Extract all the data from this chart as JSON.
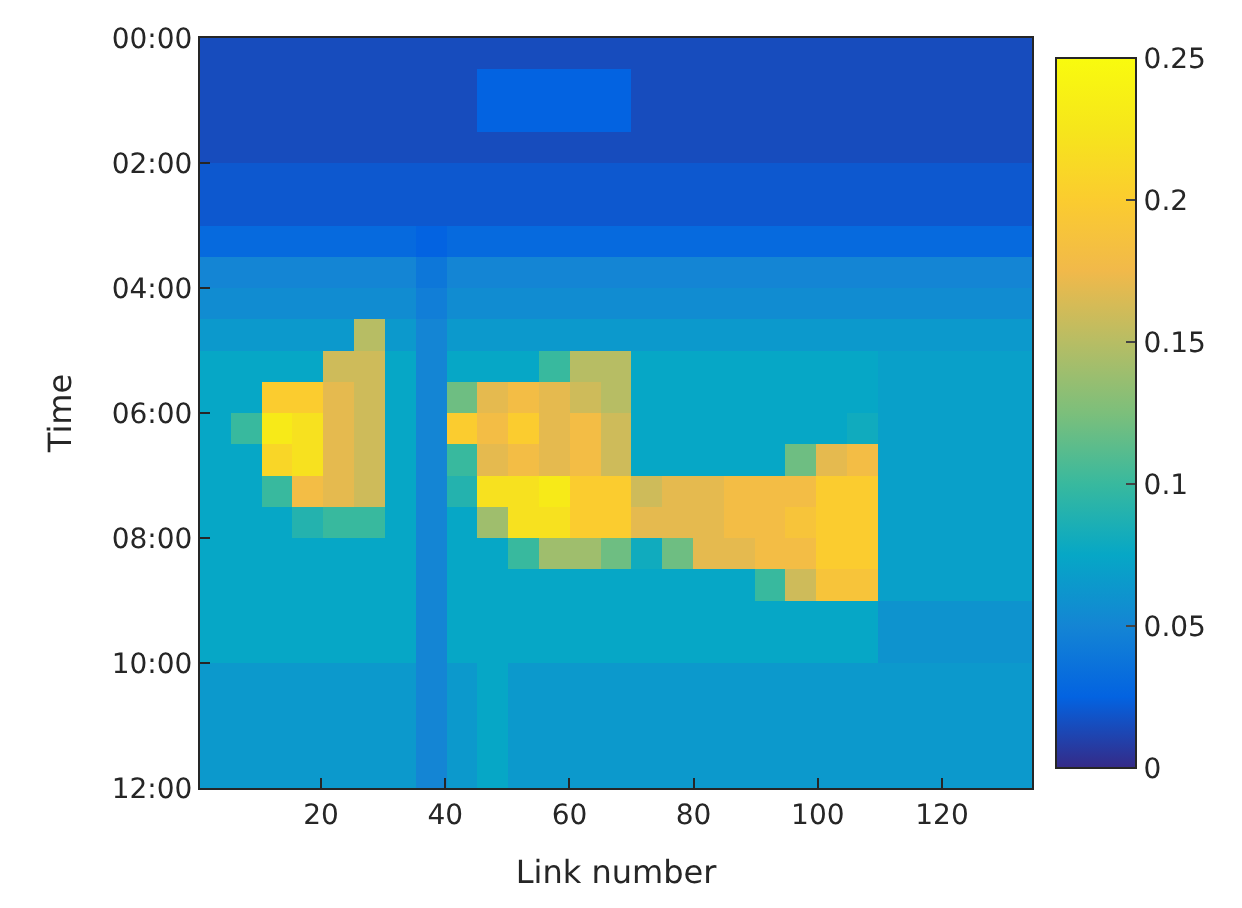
{
  "chart_data": {
    "type": "heatmap",
    "xlabel": "Link number",
    "ylabel": "Time",
    "xlim": [
      0.5,
      134.5
    ],
    "xticks": [
      20,
      40,
      60,
      80,
      100,
      120
    ],
    "ylim": [
      12,
      0
    ],
    "yticks": [
      {
        "value": 0,
        "label": "00:00"
      },
      {
        "value": 2,
        "label": "02:00"
      },
      {
        "value": 4,
        "label": "04:00"
      },
      {
        "value": 6,
        "label": "06:00"
      },
      {
        "value": 8,
        "label": "08:00"
      },
      {
        "value": 10,
        "label": "10:00"
      },
      {
        "value": 12,
        "label": "12:00"
      }
    ],
    "clim": [
      0,
      0.25
    ],
    "cticks": [
      0,
      0.05,
      0.1,
      0.15,
      0.2,
      0.25
    ],
    "cells": [
      [
        0.015,
        0.015,
        0.015,
        0.015,
        0.015,
        0.015,
        0.015,
        0.015,
        0.015,
        0.015,
        0.015,
        0.015,
        0.015,
        0.015,
        0.015,
        0.015,
        0.015,
        0.015,
        0.015,
        0.015,
        0.015,
        0.015,
        0.015,
        0.015,
        0.015,
        0.015,
        0.015
      ],
      [
        0.015,
        0.015,
        0.015,
        0.015,
        0.015,
        0.015,
        0.015,
        0.015,
        0.015,
        0.025,
        0.025,
        0.025,
        0.025,
        0.025,
        0.015,
        0.015,
        0.015,
        0.015,
        0.015,
        0.015,
        0.015,
        0.015,
        0.015,
        0.015,
        0.015,
        0.015,
        0.015
      ],
      [
        0.015,
        0.015,
        0.015,
        0.015,
        0.015,
        0.015,
        0.015,
        0.015,
        0.015,
        0.025,
        0.025,
        0.025,
        0.025,
        0.025,
        0.015,
        0.015,
        0.015,
        0.015,
        0.015,
        0.015,
        0.015,
        0.015,
        0.015,
        0.015,
        0.015,
        0.015,
        0.015
      ],
      [
        0.015,
        0.015,
        0.015,
        0.015,
        0.015,
        0.015,
        0.015,
        0.015,
        0.015,
        0.015,
        0.015,
        0.015,
        0.015,
        0.015,
        0.015,
        0.015,
        0.015,
        0.015,
        0.015,
        0.015,
        0.015,
        0.015,
        0.015,
        0.015,
        0.015,
        0.015,
        0.015
      ],
      [
        0.02,
        0.02,
        0.02,
        0.02,
        0.02,
        0.02,
        0.02,
        0.02,
        0.02,
        0.02,
        0.02,
        0.02,
        0.02,
        0.02,
        0.02,
        0.02,
        0.02,
        0.02,
        0.02,
        0.02,
        0.02,
        0.02,
        0.02,
        0.02,
        0.02,
        0.02,
        0.02
      ],
      [
        0.02,
        0.02,
        0.02,
        0.02,
        0.02,
        0.02,
        0.02,
        0.02,
        0.02,
        0.02,
        0.02,
        0.02,
        0.02,
        0.02,
        0.02,
        0.02,
        0.02,
        0.02,
        0.02,
        0.02,
        0.02,
        0.02,
        0.02,
        0.02,
        0.02,
        0.02,
        0.02
      ],
      [
        0.03,
        0.03,
        0.03,
        0.03,
        0.03,
        0.03,
        0.03,
        0.025,
        0.03,
        0.03,
        0.03,
        0.03,
        0.03,
        0.03,
        0.03,
        0.03,
        0.03,
        0.03,
        0.03,
        0.03,
        0.03,
        0.03,
        0.03,
        0.03,
        0.03,
        0.03,
        0.03
      ],
      [
        0.05,
        0.05,
        0.05,
        0.05,
        0.05,
        0.05,
        0.05,
        0.04,
        0.05,
        0.05,
        0.05,
        0.05,
        0.05,
        0.05,
        0.05,
        0.05,
        0.05,
        0.05,
        0.05,
        0.05,
        0.05,
        0.05,
        0.05,
        0.05,
        0.05,
        0.05,
        0.05
      ],
      [
        0.055,
        0.055,
        0.055,
        0.055,
        0.055,
        0.055,
        0.055,
        0.045,
        0.055,
        0.055,
        0.055,
        0.055,
        0.055,
        0.055,
        0.055,
        0.055,
        0.055,
        0.055,
        0.055,
        0.055,
        0.055,
        0.055,
        0.055,
        0.055,
        0.055,
        0.055,
        0.055
      ],
      [
        0.065,
        0.065,
        0.065,
        0.065,
        0.065,
        0.15,
        0.065,
        0.05,
        0.065,
        0.065,
        0.065,
        0.065,
        0.065,
        0.065,
        0.065,
        0.065,
        0.065,
        0.065,
        0.065,
        0.065,
        0.065,
        0.065,
        0.065,
        0.065,
        0.065,
        0.065,
        0.065
      ],
      [
        0.075,
        0.075,
        0.075,
        0.075,
        0.16,
        0.16,
        0.075,
        0.05,
        0.075,
        0.075,
        0.075,
        0.1,
        0.15,
        0.15,
        0.075,
        0.075,
        0.075,
        0.075,
        0.075,
        0.075,
        0.075,
        0.075,
        0.07,
        0.07,
        0.07,
        0.07,
        0.07
      ],
      [
        0.075,
        0.075,
        0.2,
        0.2,
        0.17,
        0.16,
        0.075,
        0.05,
        0.12,
        0.17,
        0.18,
        0.17,
        0.16,
        0.15,
        0.075,
        0.075,
        0.075,
        0.075,
        0.075,
        0.075,
        0.075,
        0.075,
        0.07,
        0.07,
        0.07,
        0.07,
        0.07
      ],
      [
        0.075,
        0.1,
        0.23,
        0.22,
        0.17,
        0.16,
        0.075,
        0.05,
        0.2,
        0.18,
        0.2,
        0.17,
        0.18,
        0.16,
        0.075,
        0.075,
        0.075,
        0.075,
        0.075,
        0.075,
        0.075,
        0.08,
        0.07,
        0.07,
        0.07,
        0.07,
        0.07
      ],
      [
        0.075,
        0.075,
        0.21,
        0.22,
        0.17,
        0.16,
        0.075,
        0.05,
        0.1,
        0.17,
        0.18,
        0.17,
        0.18,
        0.16,
        0.075,
        0.075,
        0.075,
        0.075,
        0.075,
        0.12,
        0.17,
        0.18,
        0.07,
        0.07,
        0.07,
        0.07,
        0.07
      ],
      [
        0.075,
        0.075,
        0.1,
        0.18,
        0.17,
        0.16,
        0.075,
        0.05,
        0.09,
        0.22,
        0.22,
        0.23,
        0.2,
        0.2,
        0.16,
        0.17,
        0.17,
        0.18,
        0.18,
        0.18,
        0.2,
        0.2,
        0.07,
        0.07,
        0.07,
        0.07,
        0.07
      ],
      [
        0.075,
        0.075,
        0.075,
        0.09,
        0.1,
        0.1,
        0.075,
        0.05,
        0.075,
        0.14,
        0.22,
        0.22,
        0.2,
        0.2,
        0.17,
        0.17,
        0.17,
        0.18,
        0.18,
        0.19,
        0.2,
        0.2,
        0.07,
        0.07,
        0.07,
        0.07,
        0.07
      ],
      [
        0.075,
        0.075,
        0.075,
        0.075,
        0.075,
        0.075,
        0.075,
        0.05,
        0.075,
        0.075,
        0.1,
        0.14,
        0.14,
        0.12,
        0.08,
        0.12,
        0.17,
        0.17,
        0.18,
        0.18,
        0.2,
        0.2,
        0.07,
        0.07,
        0.07,
        0.07,
        0.07
      ],
      [
        0.075,
        0.075,
        0.075,
        0.075,
        0.075,
        0.075,
        0.075,
        0.05,
        0.075,
        0.075,
        0.075,
        0.075,
        0.075,
        0.075,
        0.075,
        0.075,
        0.075,
        0.075,
        0.1,
        0.16,
        0.19,
        0.19,
        0.07,
        0.07,
        0.07,
        0.07,
        0.07
      ],
      [
        0.075,
        0.075,
        0.075,
        0.075,
        0.075,
        0.075,
        0.075,
        0.05,
        0.075,
        0.075,
        0.075,
        0.075,
        0.075,
        0.075,
        0.075,
        0.075,
        0.075,
        0.075,
        0.075,
        0.075,
        0.075,
        0.075,
        0.06,
        0.06,
        0.06,
        0.06,
        0.06
      ],
      [
        0.075,
        0.075,
        0.075,
        0.075,
        0.075,
        0.075,
        0.075,
        0.05,
        0.075,
        0.075,
        0.075,
        0.075,
        0.075,
        0.075,
        0.075,
        0.075,
        0.075,
        0.075,
        0.075,
        0.075,
        0.075,
        0.075,
        0.06,
        0.06,
        0.06,
        0.06,
        0.06
      ],
      [
        0.065,
        0.065,
        0.065,
        0.065,
        0.065,
        0.065,
        0.065,
        0.05,
        0.065,
        0.075,
        0.065,
        0.065,
        0.065,
        0.065,
        0.065,
        0.065,
        0.065,
        0.065,
        0.065,
        0.065,
        0.065,
        0.065,
        0.065,
        0.065,
        0.065,
        0.065,
        0.065
      ],
      [
        0.065,
        0.065,
        0.065,
        0.065,
        0.065,
        0.065,
        0.065,
        0.05,
        0.065,
        0.075,
        0.065,
        0.065,
        0.065,
        0.065,
        0.065,
        0.065,
        0.065,
        0.065,
        0.065,
        0.065,
        0.065,
        0.065,
        0.065,
        0.065,
        0.065,
        0.065,
        0.065
      ],
      [
        0.065,
        0.065,
        0.065,
        0.065,
        0.065,
        0.065,
        0.065,
        0.05,
        0.065,
        0.075,
        0.065,
        0.065,
        0.065,
        0.065,
        0.065,
        0.065,
        0.065,
        0.065,
        0.065,
        0.065,
        0.065,
        0.065,
        0.065,
        0.065,
        0.065,
        0.065,
        0.065
      ],
      [
        0.065,
        0.065,
        0.065,
        0.065,
        0.065,
        0.065,
        0.065,
        0.05,
        0.065,
        0.075,
        0.065,
        0.065,
        0.065,
        0.065,
        0.065,
        0.065,
        0.065,
        0.065,
        0.065,
        0.065,
        0.065,
        0.065,
        0.065,
        0.065,
        0.065,
        0.065,
        0.065
      ]
    ]
  }
}
